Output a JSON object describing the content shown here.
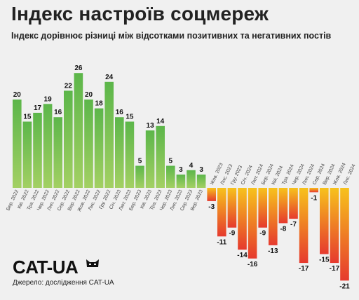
{
  "header": {
    "title": "Індекс настроїв соцмереж",
    "subtitle": "Індекс дорівнює різниці між відсотками позитивних та негативних постів"
  },
  "footer": {
    "logo": "CAT-UA",
    "source": "Джерело: дослідження CAT-UA"
  },
  "colors": {
    "positive_bar": "#5cb64a",
    "positive_bar_light": "#a3d063",
    "negative_bar_top": "#f7c21c",
    "negative_bar_bottom": "#e63a2e",
    "background": "#f0f0f0"
  },
  "chart_data": {
    "type": "bar",
    "title": "Індекс настроїв соцмереж",
    "subtitle": "Індекс дорівнює різниці між відсотками позитивних та негативних постів",
    "categories": [
      "Бер. 2022",
      "Кві. 2022",
      "Тра. 2022",
      "Чер. 2022",
      "Лип. 2022",
      "Сер. 2022",
      "Вер. 2022",
      "Жов. 2022",
      "Лис. 2022",
      "Гру. 2022",
      "Січ. 2023",
      "Лют. 2023",
      "Бер. 2023",
      "Кві. 2023",
      "Тра. 2023",
      "Чер. 2023",
      "Лип. 2023",
      "Сер. 2023",
      "Вер. 2023",
      "Жов. 2023",
      "Лис. 2023",
      "Гру. 2023",
      "Січ. 2024",
      "Лют. 2024",
      "Бер. 2024",
      "Кві. 2024",
      "Тра. 2024",
      "Чер. 2024",
      "Лип. 2024",
      "Сер. 2024",
      "Вер. 2024",
      "Жов. 2024",
      "Лис. 2024"
    ],
    "values": [
      20,
      15,
      17,
      19,
      16,
      22,
      26,
      20,
      18,
      24,
      16,
      15,
      5,
      13,
      14,
      5,
      3,
      4,
      3,
      -3,
      -11,
      -9,
      -14,
      -16,
      -9,
      -13,
      -8,
      -7,
      -17,
      -1,
      -15,
      -17,
      -21
    ],
    "ylim": [
      -21,
      26
    ],
    "xlabel": "",
    "ylabel": "",
    "grid": false,
    "legend": "none"
  }
}
